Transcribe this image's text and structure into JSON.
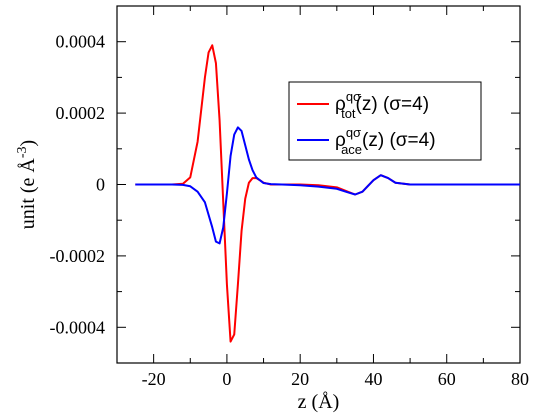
{
  "chart_data": {
    "type": "line",
    "xlabel": "z (Å)",
    "ylabel": "unit (e Å",
    "ylabel_exponent": "-3",
    "ylabel_close": ")",
    "xlim": [
      -30,
      80
    ],
    "ylim": [
      -0.0005,
      0.0005
    ],
    "x_ticks": [
      -20,
      0,
      20,
      40,
      60,
      80
    ],
    "x_tick_labels": [
      "-20",
      "0",
      "20",
      "40",
      "60",
      "80"
    ],
    "y_ticks": [
      -0.0004,
      -0.0002,
      0,
      0.0002,
      0.0004
    ],
    "y_tick_labels": [
      "-0.0004",
      "-0.0002",
      "0",
      "0.0002",
      "0.0004"
    ],
    "grid": false,
    "legend_position": "top-right",
    "series": [
      {
        "name_main": "ρ",
        "name_sup": "qσ",
        "name_sub": "tot",
        "name_rest": "(z) (σ=4)",
        "color": "#ff0000",
        "x": [
          -25,
          -20,
          -15,
          -12,
          -10,
          -8,
          -6,
          -5,
          -4,
          -3,
          -2,
          -1,
          0,
          1,
          2,
          3,
          4,
          5,
          6,
          7,
          8,
          9,
          10,
          12,
          15,
          20,
          25,
          30,
          33,
          35,
          37,
          40,
          42,
          44,
          46,
          50,
          55,
          60,
          70,
          80
        ],
        "y": [
          0,
          0,
          0,
          2e-06,
          2e-05,
          0.00012,
          0.0003,
          0.00037,
          0.00039,
          0.00034,
          0.00018,
          -5e-05,
          -0.00028,
          -0.00044,
          -0.00042,
          -0.00028,
          -0.00013,
          -4e-05,
          5e-06,
          1.8e-05,
          1.8e-05,
          1.2e-05,
          5e-06,
          0,
          0,
          0,
          -2e-06,
          -8e-06,
          -2e-05,
          -2.8e-05,
          -2e-05,
          1.2e-05,
          2.6e-05,
          1.8e-05,
          5e-06,
          0,
          0,
          0,
          0,
          0
        ]
      },
      {
        "name_main": "ρ",
        "name_sup": "qσ",
        "name_sub": "ace",
        "name_rest": "(z) (σ=4)",
        "color": "#0000ff",
        "x": [
          -25,
          -20,
          -15,
          -12,
          -10,
          -8,
          -6,
          -4,
          -3,
          -2,
          -1,
          0,
          1,
          2,
          3,
          4,
          5,
          6,
          7,
          8,
          10,
          12,
          15,
          20,
          25,
          30,
          33,
          35,
          37,
          40,
          42,
          44,
          46,
          50,
          55,
          60,
          70,
          80
        ],
        "y": [
          0,
          0,
          0,
          -1e-06,
          -5e-06,
          -2e-05,
          -5e-05,
          -0.00012,
          -0.00016,
          -0.000165,
          -0.00012,
          -2.5e-05,
          8e-05,
          0.00014,
          0.00016,
          0.00015,
          0.00011,
          7e-05,
          4e-05,
          2e-05,
          4e-06,
          1e-06,
          0,
          -2e-06,
          -6e-06,
          -1.2e-05,
          -2.2e-05,
          -2.8e-05,
          -2e-05,
          1.2e-05,
          2.6e-05,
          1.8e-05,
          5e-06,
          0,
          0,
          0,
          0,
          0
        ]
      }
    ]
  }
}
